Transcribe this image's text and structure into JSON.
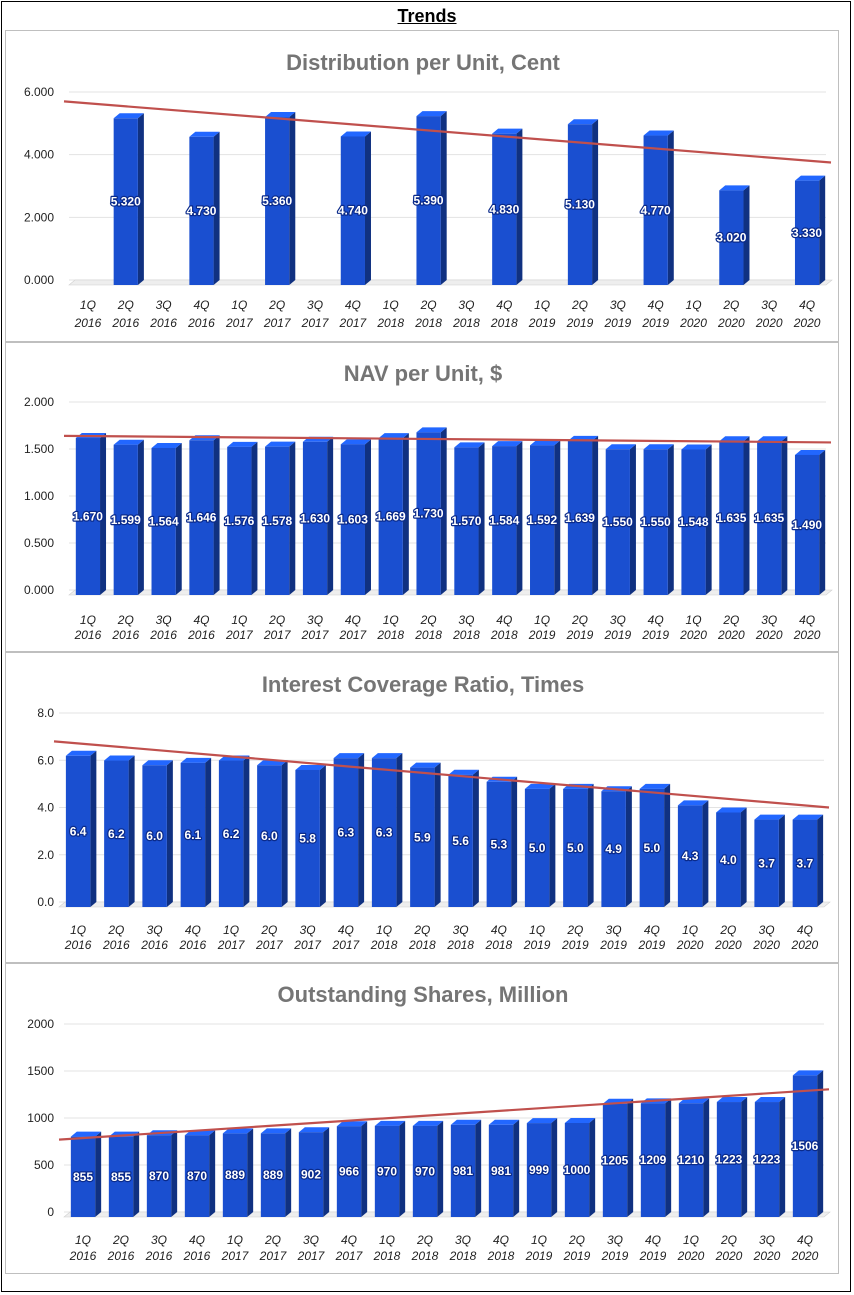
{
  "page": {
    "title": "Trends"
  },
  "chart_data": [
    {
      "type": "bar",
      "title": "Distribution per Unit, Cent",
      "categories": [
        "1Q 2016",
        "2Q 2016",
        "3Q 2016",
        "4Q 2016",
        "1Q 2017",
        "2Q 2017",
        "3Q 2017",
        "4Q 2017",
        "1Q 2018",
        "2Q 2018",
        "3Q 2018",
        "4Q 2018",
        "1Q 2019",
        "2Q 2019",
        "3Q 2019",
        "4Q 2019",
        "1Q 2020",
        "2Q 2020",
        "3Q 2020",
        "4Q 2020"
      ],
      "values": [
        null,
        5.32,
        null,
        4.73,
        null,
        5.36,
        null,
        4.74,
        null,
        5.39,
        null,
        4.83,
        null,
        5.13,
        null,
        4.77,
        null,
        3.02,
        null,
        3.33
      ],
      "value_labels": [
        "",
        "5.320",
        "",
        "4.730",
        "",
        "5.360",
        "",
        "4.740",
        "",
        "5.390",
        "",
        "4.830",
        "",
        "5.130",
        "",
        "4.770",
        "",
        "3.020",
        "",
        "3.330"
      ],
      "yticks": [
        "0.000",
        "2.000",
        "4.000",
        "6.000"
      ],
      "ylim": [
        0,
        6
      ],
      "trendline": [
        5.7,
        3.75
      ],
      "colors": {
        "bar": "#1a4fd0",
        "trend": "#c0504d"
      }
    },
    {
      "type": "bar",
      "title": "NAV per Unit, $",
      "categories": [
        "1Q 2016",
        "2Q 2016",
        "3Q 2016",
        "4Q 2016",
        "1Q 2017",
        "2Q 2017",
        "3Q 2017",
        "4Q 2017",
        "1Q 2018",
        "2Q 2018",
        "3Q 2018",
        "4Q 2018",
        "1Q 2019",
        "2Q 2019",
        "3Q 2019",
        "4Q 2019",
        "1Q 2020",
        "2Q 2020",
        "3Q 2020",
        "4Q 2020"
      ],
      "values": [
        1.67,
        1.599,
        1.564,
        1.646,
        1.576,
        1.578,
        1.63,
        1.603,
        1.669,
        1.73,
        1.57,
        1.584,
        1.592,
        1.639,
        1.55,
        1.55,
        1.548,
        1.635,
        1.635,
        1.49
      ],
      "value_labels": [
        "1.670",
        "1.599",
        "1.564",
        "1.646",
        "1.576",
        "1.578",
        "1.630",
        "1.603",
        "1.669",
        "1.730",
        "1.570",
        "1.584",
        "1.592",
        "1.639",
        "1.550",
        "1.550",
        "1.548",
        "1.635",
        "1.635",
        "1.490"
      ],
      "yticks": [
        "0.000",
        "0.500",
        "1.000",
        "1.500",
        "2.000"
      ],
      "ylim": [
        0,
        2
      ],
      "trendline": [
        1.64,
        1.57
      ],
      "colors": {
        "bar": "#1a4fd0",
        "trend": "#c0504d"
      }
    },
    {
      "type": "bar",
      "title": "Interest Coverage Ratio, Times",
      "categories": [
        "1Q 2016",
        "2Q 2016",
        "3Q 2016",
        "4Q 2016",
        "1Q 2017",
        "2Q 2017",
        "3Q 2017",
        "4Q 2017",
        "1Q 2018",
        "2Q 2018",
        "3Q 2018",
        "4Q 2018",
        "1Q 2019",
        "2Q 2019",
        "3Q 2019",
        "4Q 2019",
        "1Q 2020",
        "2Q 2020",
        "3Q 2020",
        "4Q 2020"
      ],
      "values": [
        6.4,
        6.2,
        6.0,
        6.1,
        6.2,
        6.0,
        5.8,
        6.3,
        6.3,
        5.9,
        5.6,
        5.3,
        5.0,
        5.0,
        4.9,
        5.0,
        4.3,
        4.0,
        3.7,
        3.7
      ],
      "value_labels": [
        "6.4",
        "6.2",
        "6.0",
        "6.1",
        "6.2",
        "6.0",
        "5.8",
        "6.3",
        "6.3",
        "5.9",
        "5.6",
        "5.3",
        "5.0",
        "5.0",
        "4.9",
        "5.0",
        "4.3",
        "4.0",
        "3.7",
        "3.7"
      ],
      "yticks": [
        "0.0",
        "2.0",
        "4.0",
        "6.0",
        "8.0"
      ],
      "ylim": [
        0,
        8
      ],
      "trendline": [
        6.8,
        4.0
      ],
      "colors": {
        "bar": "#1a4fd0",
        "trend": "#c0504d"
      }
    },
    {
      "type": "bar",
      "title": "Outstanding Shares, Million",
      "categories": [
        "1Q 2016",
        "2Q 2016",
        "3Q 2016",
        "4Q 2016",
        "1Q 2017",
        "2Q 2017",
        "3Q 2017",
        "4Q 2017",
        "1Q 2018",
        "2Q 2018",
        "3Q 2018",
        "4Q 2018",
        "1Q 2019",
        "2Q 2019",
        "3Q 2019",
        "4Q 2019",
        "1Q 2020",
        "2Q 2020",
        "3Q 2020",
        "4Q 2020"
      ],
      "values": [
        855,
        855,
        870,
        870,
        889,
        889,
        902,
        966,
        970,
        970,
        981,
        981,
        999,
        1000,
        1205,
        1209,
        1210,
        1223,
        1223,
        1506
      ],
      "value_labels": [
        "855",
        "855",
        "870",
        "870",
        "889",
        "889",
        "902",
        "966",
        "970",
        "970",
        "981",
        "981",
        "999",
        "1000",
        "1205",
        "1209",
        "1210",
        "1223",
        "1223",
        "1506"
      ],
      "yticks": [
        "0",
        "500",
        "1000",
        "1500",
        "2000"
      ],
      "ylim": [
        0,
        2000
      ],
      "trendline": [
        770,
        1305
      ],
      "colors": {
        "bar": "#1a4fd0",
        "trend": "#c0504d"
      }
    }
  ]
}
